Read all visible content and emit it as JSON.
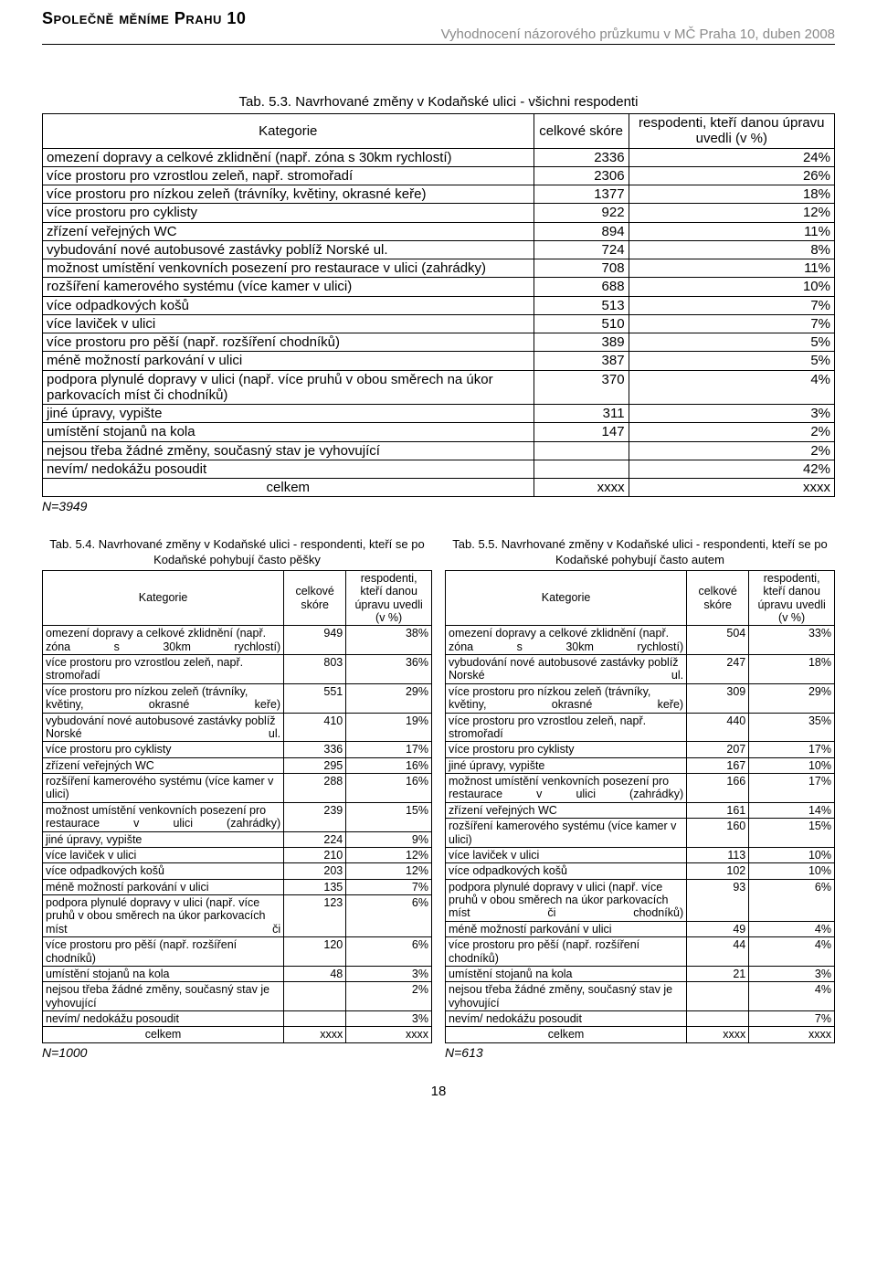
{
  "header": {
    "title": "Společně měníme Prahu 10",
    "subtitle": "Vyhodnocení názorového průzkumu v MČ Praha 10, duben 2008"
  },
  "page_number": "18",
  "main_table": {
    "title": "Tab. 5.3. Navrhované změny v Kodaňské ulici - všichni respodenti",
    "col_kategorie": "Kategorie",
    "col_skore": "celkové skóre",
    "col_resp": "respodenti, kteří danou úpravu uvedli (v %)",
    "total_label": "celkem",
    "total_s": "xxxx",
    "total_p": "xxxx",
    "n_label": "N=3949",
    "rows": [
      {
        "k": "omezení dopravy a celkové zklidnění (např. zóna s 30km rychlostí)",
        "s": "2336",
        "p": "24%"
      },
      {
        "k": "více prostoru pro vzrostlou zeleň, např. stromořadí",
        "s": "2306",
        "p": "26%"
      },
      {
        "k": "více prostoru pro nízkou zeleň (trávníky, květiny, okrasné keře)",
        "s": "1377",
        "p": "18%"
      },
      {
        "k": "více prostoru pro cyklisty",
        "s": "922",
        "p": "12%"
      },
      {
        "k": "zřízení veřejných WC",
        "s": "894",
        "p": "11%"
      },
      {
        "k": "vybudování nové autobusové zastávky poblíž Norské ul.",
        "s": "724",
        "p": "8%"
      },
      {
        "k": "možnost umístění venkovních posezení pro restaurace v ulici (zahrádky)",
        "s": "708",
        "p": "11%"
      },
      {
        "k": "rozšíření kamerového systému (více kamer v ulici)",
        "s": "688",
        "p": "10%"
      },
      {
        "k": "více odpadkových košů",
        "s": "513",
        "p": "7%"
      },
      {
        "k": "více laviček v ulici",
        "s": "510",
        "p": "7%"
      },
      {
        "k": "více prostoru pro pěší (např. rozšíření chodníků)",
        "s": "389",
        "p": "5%"
      },
      {
        "k": "méně možností parkování v ulici",
        "s": "387",
        "p": "5%"
      },
      {
        "k": "podpora plynulé dopravy v ulici (např. více pruhů v obou směrech na úkor parkovacích míst či chodníků)",
        "s": "370",
        "p": "4%"
      },
      {
        "k": "jiné úpravy, vypište",
        "s": "311",
        "p": "3%"
      },
      {
        "k": "umístění stojanů na kola",
        "s": "147",
        "p": "2%"
      },
      {
        "k": "nejsou třeba žádné změny, současný stav je vyhovující",
        "s": "",
        "p": "2%"
      },
      {
        "k": "nevím/ nedokážu posoudit",
        "s": "",
        "p": "42%"
      }
    ]
  },
  "left_table": {
    "title": "Tab. 5.4. Navrhované změny v Kodaňské ulici - respondenti, kteří se po Kodaňské pohybují často pěšky",
    "col_kategorie": "Kategorie",
    "col_skore": "celkové skóre",
    "col_resp": "respodenti, kteří danou úpravu uvedli (v %)",
    "total_label": "celkem",
    "total_s": "xxxx",
    "total_p": "xxxx",
    "n_label": "N=1000",
    "rows": [
      {
        "k": "omezení dopravy a celkové zklidnění (např. zóna s 30km rychlostí)",
        "s": "949",
        "p": "38%",
        "justify": true
      },
      {
        "k": "více prostoru pro vzrostlou zeleň, např. stromořadí",
        "s": "803",
        "p": "36%",
        "justify": true
      },
      {
        "k": "více prostoru pro nízkou zeleň (trávníky, květiny, okrasné keře)",
        "s": "551",
        "p": "29%",
        "justify": true
      },
      {
        "k": "vybudování nové autobusové zastávky poblíž Norské ul.",
        "s": "410",
        "p": "19%",
        "justify": true
      },
      {
        "k": "více prostoru pro cyklisty",
        "s": "336",
        "p": "17%"
      },
      {
        "k": "zřízení veřejných WC",
        "s": "295",
        "p": "16%"
      },
      {
        "k": "rozšíření kamerového systému (více kamer v ulici)",
        "s": "288",
        "p": "16%",
        "justify": true
      },
      {
        "k": "možnost umístění venkovních posezení pro restaurace v ulici (zahrádky)",
        "s": "239",
        "p": "15%",
        "justify": true
      },
      {
        "k": "jiné úpravy, vypište",
        "s": "224",
        "p": "9%"
      },
      {
        "k": "více laviček v ulici",
        "s": "210",
        "p": "12%"
      },
      {
        "k": "více odpadkových košů",
        "s": "203",
        "p": "12%"
      },
      {
        "k": "méně možností parkování v ulici",
        "s": "135",
        "p": "7%"
      },
      {
        "k": "podpora plynulé dopravy v ulici (např. více pruhů v obou směrech na úkor parkovacích míst či",
        "s": "123",
        "p": "6%",
        "justify": true
      },
      {
        "k": "více prostoru pro pěší (např. rozšíření chodníků)",
        "s": "120",
        "p": "6%"
      },
      {
        "k": "umístění stojanů na kola",
        "s": "48",
        "p": "3%"
      },
      {
        "k": "nejsou třeba žádné změny, současný stav je vyhovující",
        "s": "",
        "p": "2%",
        "justify": true
      },
      {
        "k": "nevím/ nedokážu posoudit",
        "s": "",
        "p": "3%"
      }
    ]
  },
  "right_table": {
    "title": "Tab. 5.5. Navrhované změny v Kodaňské ulici - respondenti, kteří se po Kodaňské pohybují často autem",
    "col_kategorie": "Kategorie",
    "col_skore": "celkové skóre",
    "col_resp": "respodenti, kteří danou úpravu uvedli (v %)",
    "total_label": "celkem",
    "total_s": "xxxx",
    "total_p": "xxxx",
    "n_label": "N=613",
    "rows": [
      {
        "k": "omezení dopravy a celkové zklidnění (např. zóna s 30km rychlostí)",
        "s": "504",
        "p": "33%",
        "justify": true
      },
      {
        "k": "vybudování nové autobusové zastávky poblíž Norské ul.",
        "s": "247",
        "p": "18%",
        "justify": true
      },
      {
        "k": "více prostoru pro nízkou zeleň (trávníky, květiny, okrasné keře)",
        "s": "309",
        "p": "29%",
        "justify": true
      },
      {
        "k": "více prostoru pro vzrostlou zeleň, např. stromořadí",
        "s": "440",
        "p": "35%",
        "justify": true
      },
      {
        "k": "více prostoru pro cyklisty",
        "s": "207",
        "p": "17%"
      },
      {
        "k": "jiné úpravy, vypište",
        "s": "167",
        "p": "10%"
      },
      {
        "k": "možnost umístění venkovních posezení pro restaurace v ulici (zahrádky)",
        "s": "166",
        "p": "17%",
        "justify": true
      },
      {
        "k": "zřízení veřejných WC",
        "s": "161",
        "p": "14%"
      },
      {
        "k": "rozšíření kamerového systému (více kamer v ulici)",
        "s": "160",
        "p": "15%",
        "justify": true
      },
      {
        "k": "více laviček v ulici",
        "s": "113",
        "p": "10%"
      },
      {
        "k": "více odpadkových košů",
        "s": "102",
        "p": "10%"
      },
      {
        "k": "podpora plynulé dopravy v ulici (např. více pruhů v obou směrech na úkor parkovacích míst či chodníků)",
        "s": "93",
        "p": "6%",
        "justify": true
      },
      {
        "k": "méně možností parkování v ulici",
        "s": "49",
        "p": "4%"
      },
      {
        "k": "více prostoru pro pěší (např. rozšíření chodníků)",
        "s": "44",
        "p": "4%",
        "justify": true
      },
      {
        "k": "umístění stojanů na kola",
        "s": "21",
        "p": "3%"
      },
      {
        "k": "nejsou třeba žádné změny, současný stav je vyhovující",
        "s": "",
        "p": "4%",
        "justify": true
      },
      {
        "k": "nevím/ nedokážu posoudit",
        "s": "",
        "p": "7%"
      }
    ]
  }
}
